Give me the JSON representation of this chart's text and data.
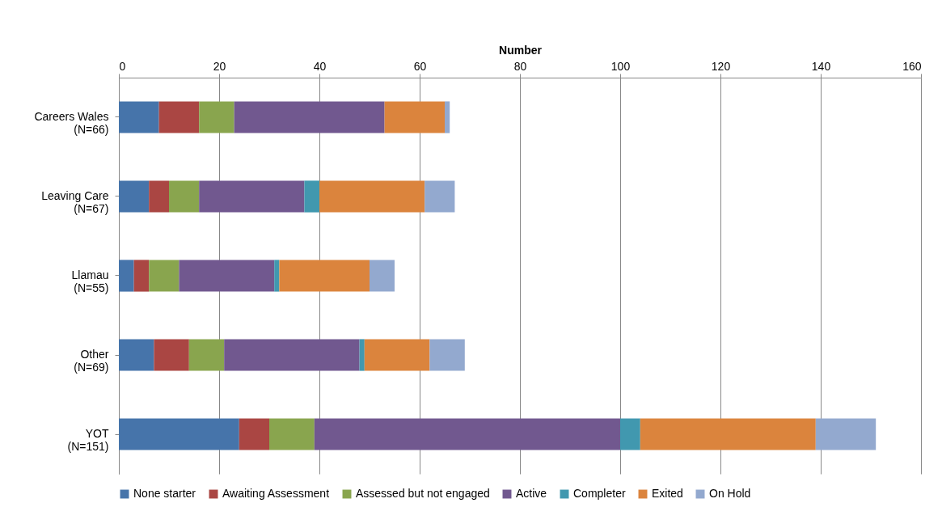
{
  "chart_data": {
    "type": "bar",
    "orientation": "horizontal",
    "stacked": true,
    "xlabel": "Number",
    "categories": [
      "Careers Wales\n(N=66)",
      "Leaving Care\n(N=67)",
      "Llamau\n(N=55)",
      "Other\n(N=69)",
      "YOT\n(N=151)"
    ],
    "series": [
      {
        "name": "None starter",
        "color": "#4674aa",
        "values": [
          8,
          6,
          3,
          7,
          24
        ]
      },
      {
        "name": "Awaiting Assessment",
        "color": "#aa4643",
        "values": [
          8,
          4,
          3,
          7,
          6
        ]
      },
      {
        "name": "Assessed but not engaged",
        "color": "#89a54e",
        "values": [
          7,
          6,
          6,
          7,
          9
        ]
      },
      {
        "name": "Active",
        "color": "#71588f",
        "values": [
          30,
          21,
          19,
          27,
          61
        ]
      },
      {
        "name": "Completer",
        "color": "#4198af",
        "values": [
          0,
          3,
          1,
          1,
          4
        ]
      },
      {
        "name": "Exited",
        "color": "#db843d",
        "values": [
          12,
          21,
          18,
          13,
          35
        ]
      },
      {
        "name": "On Hold",
        "color": "#93a9cf",
        "values": [
          1,
          6,
          5,
          7,
          12
        ]
      }
    ],
    "xlim": [
      0,
      160
    ],
    "xticks": [
      0,
      20,
      40,
      60,
      80,
      100,
      120,
      140,
      160
    ],
    "grid": "x",
    "legend": "bottom"
  }
}
